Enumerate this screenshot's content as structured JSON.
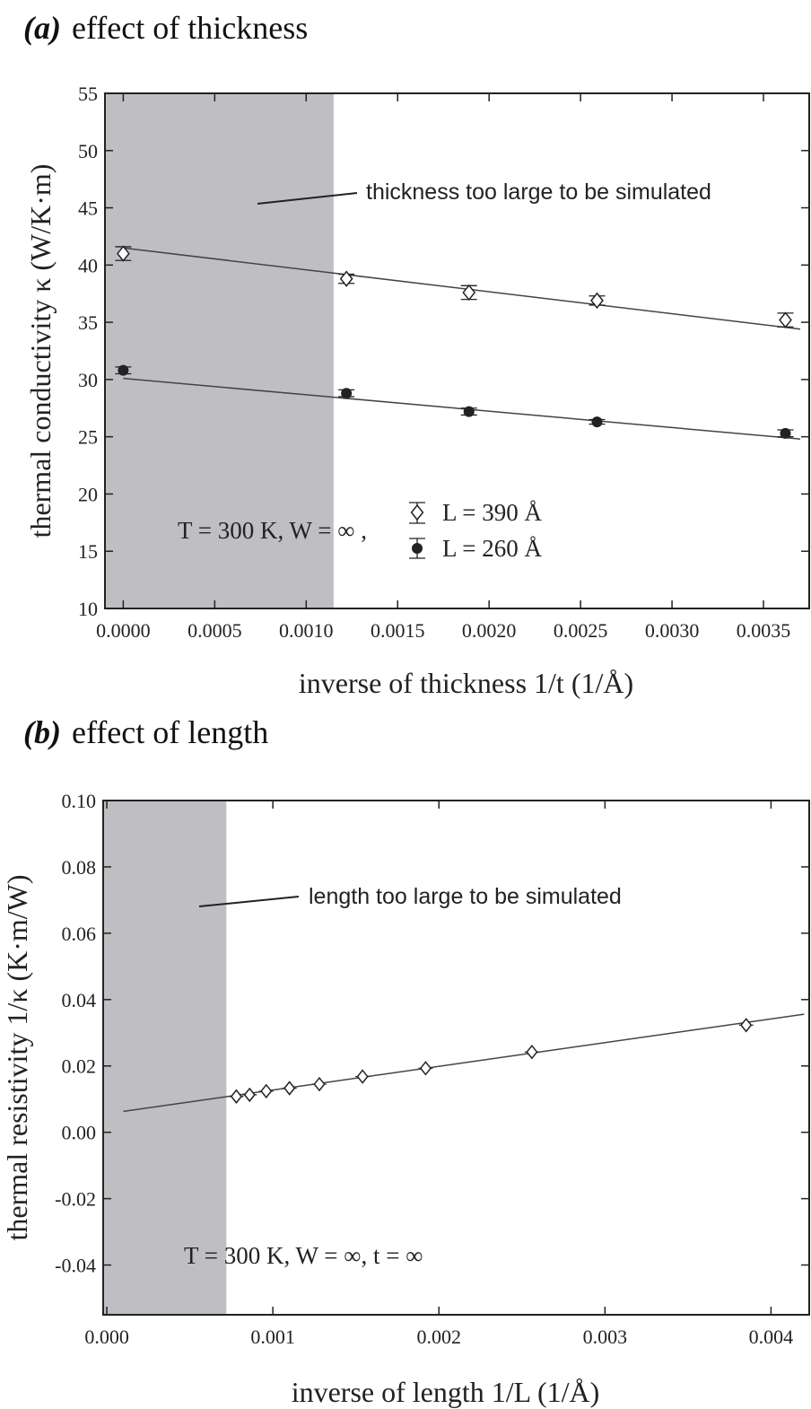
{
  "panel_a": {
    "tag": "(a)",
    "title": "effect of thickness",
    "condition": "T = 300 K, W =  ∞ ,",
    "shade_note": "thickness too large to be simulated"
  },
  "panel_b": {
    "tag": "(b)",
    "title": "effect of length",
    "condition": "T = 300 K, W =  ∞, t = ∞",
    "shade_note": "length too large to be simulated"
  },
  "colors": {
    "shade": "#bfbfc3",
    "line": "#444444",
    "marker_fill_open": "#ffffff",
    "marker_fill_solid": "#222222"
  },
  "chart_data": [
    {
      "type": "scatter",
      "title": "effect of thickness",
      "xlabel": "inverse of thickness 1/t (1/Å)",
      "ylabel": "thermal conductivity κ (W/K·m)",
      "xlim": [
        -0.0001,
        0.00375
      ],
      "ylim": [
        10,
        55
      ],
      "xticks": [
        0,
        0.0005,
        0.001,
        0.0015,
        0.002,
        0.0025,
        0.003,
        0.0035
      ],
      "xtick_labels": [
        "0.0000",
        "0.0005",
        "0.0010",
        "0.0015",
        "0.0020",
        "0.0025",
        "0.0030",
        "0.0035"
      ],
      "yticks": [
        10,
        15,
        20,
        25,
        30,
        35,
        40,
        45,
        50,
        55
      ],
      "ytick_labels": [
        "10",
        "15",
        "20",
        "25",
        "30",
        "35",
        "40",
        "45",
        "50",
        "55"
      ],
      "shaded_region": [
        -0.0001,
        0.00115
      ],
      "legend_position": "lower-center",
      "series": [
        {
          "name": "L = 390 Å",
          "marker": "open-diamond",
          "x": [
            0.0,
            0.00122,
            0.00189,
            0.00259,
            0.00362
          ],
          "y": [
            41.0,
            38.8,
            37.6,
            36.9,
            35.2
          ],
          "err": [
            0.6,
            0.4,
            0.6,
            0.4,
            0.6
          ],
          "fit": [
            41.5,
            34.4
          ]
        },
        {
          "name": "L = 260 Å",
          "marker": "filled-circle",
          "x": [
            0.0,
            0.00122,
            0.00189,
            0.00259,
            0.00362
          ],
          "y": [
            30.8,
            28.8,
            27.2,
            26.3,
            25.3
          ],
          "err": [
            0.3,
            0.3,
            0.3,
            0.2,
            0.3
          ],
          "fit": [
            30.1,
            24.8
          ]
        }
      ]
    },
    {
      "type": "scatter",
      "title": "effect of length",
      "xlabel": "inverse of length 1/L (1/Å)",
      "ylabel": "thermal resistivity 1/κ (K·m/W)",
      "xlim": [
        -2.2e-05,
        0.00423
      ],
      "ylim": [
        -0.055,
        0.1
      ],
      "xticks": [
        0,
        0.001,
        0.002,
        0.003,
        0.004
      ],
      "xtick_labels": [
        "0.000",
        "0.001",
        "0.002",
        "0.003",
        "0.004"
      ],
      "yticks": [
        -0.04,
        -0.02,
        0.0,
        0.02,
        0.04,
        0.06,
        0.08,
        0.1
      ],
      "ytick_labels": [
        "-0.04",
        "-0.02",
        "0.00",
        "0.02",
        "0.04",
        "0.06",
        "0.08",
        "0.10"
      ],
      "shaded_region": [
        -2.2e-05,
        0.00072
      ],
      "series": [
        {
          "marker": "open-diamond",
          "x": [
            0.00078,
            0.00086,
            0.00096,
            0.0011,
            0.00128,
            0.00154,
            0.00192,
            0.00256,
            0.00385
          ],
          "y": [
            0.0108,
            0.0113,
            0.0124,
            0.0133,
            0.0145,
            0.0168,
            0.0193,
            0.0242,
            0.0323
          ],
          "fit_x": [
            0.0001,
            0.0042
          ],
          "fit_y": [
            0.0063,
            0.0356
          ]
        }
      ]
    }
  ]
}
